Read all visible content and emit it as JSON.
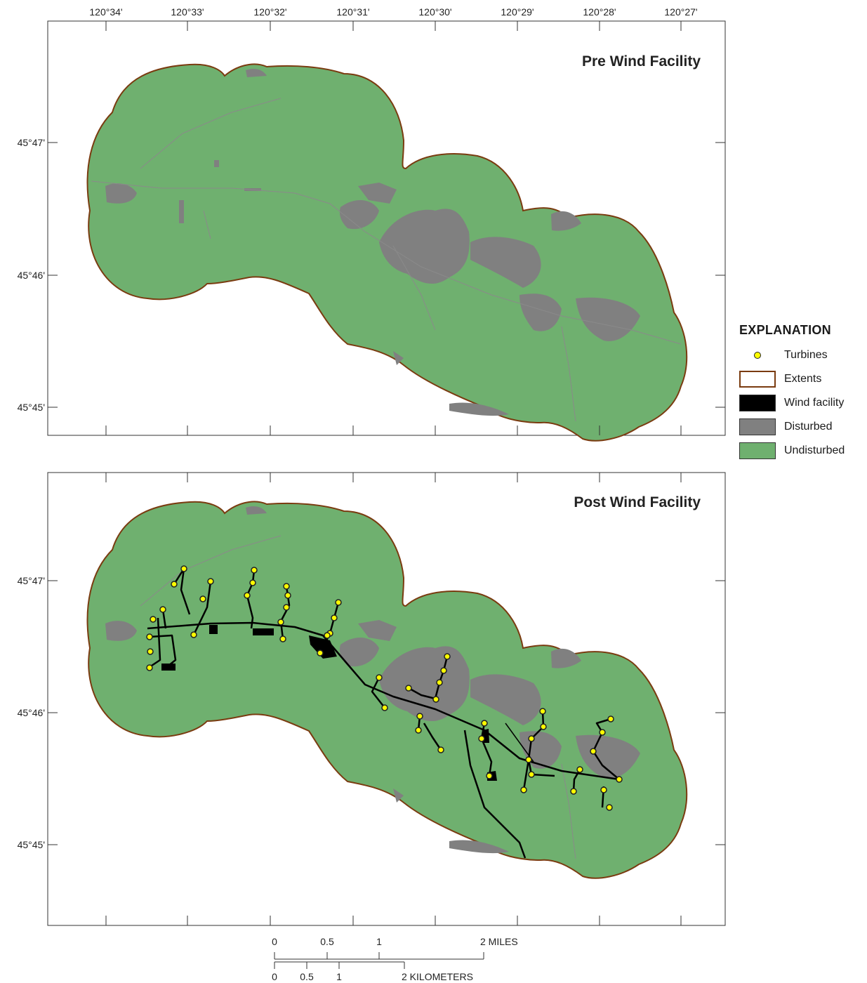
{
  "lon_labels": [
    "120°34'",
    "120°33'",
    "120°32'",
    "120°31'",
    "120°30'",
    "120°29'",
    "120°28'",
    "120°27'"
  ],
  "lat_labels": [
    "45°47'",
    "45°46'",
    "45°45'"
  ],
  "panels": [
    {
      "title": "Pre Wind Facility"
    },
    {
      "title": "Post Wind Facility"
    }
  ],
  "legend": {
    "title": "EXPLANATION",
    "items": [
      {
        "label": "Turbines",
        "symbol": "point",
        "color": "#ffff00"
      },
      {
        "label": "Extents",
        "symbol": "outline",
        "color": "#7a3b10"
      },
      {
        "label": "Wind facility",
        "symbol": "fill",
        "color": "#000000"
      },
      {
        "label": "Disturbed",
        "symbol": "fill",
        "color": "#808080"
      },
      {
        "label": "Undisturbed",
        "symbol": "fill",
        "color": "#6fb06f"
      }
    ]
  },
  "scale_bar": {
    "miles": [
      "0",
      "0.5",
      "1",
      "2 MILES"
    ],
    "kilometers": [
      "0",
      "0.5",
      "1",
      "2 KILOMETERS"
    ]
  },
  "colors": {
    "undisturbed": "#6fb06f",
    "disturbed": "#808080",
    "extent": "#7a3b10",
    "wind": "#000000",
    "turbine": "#ffff00"
  },
  "turbine_count": 42
}
